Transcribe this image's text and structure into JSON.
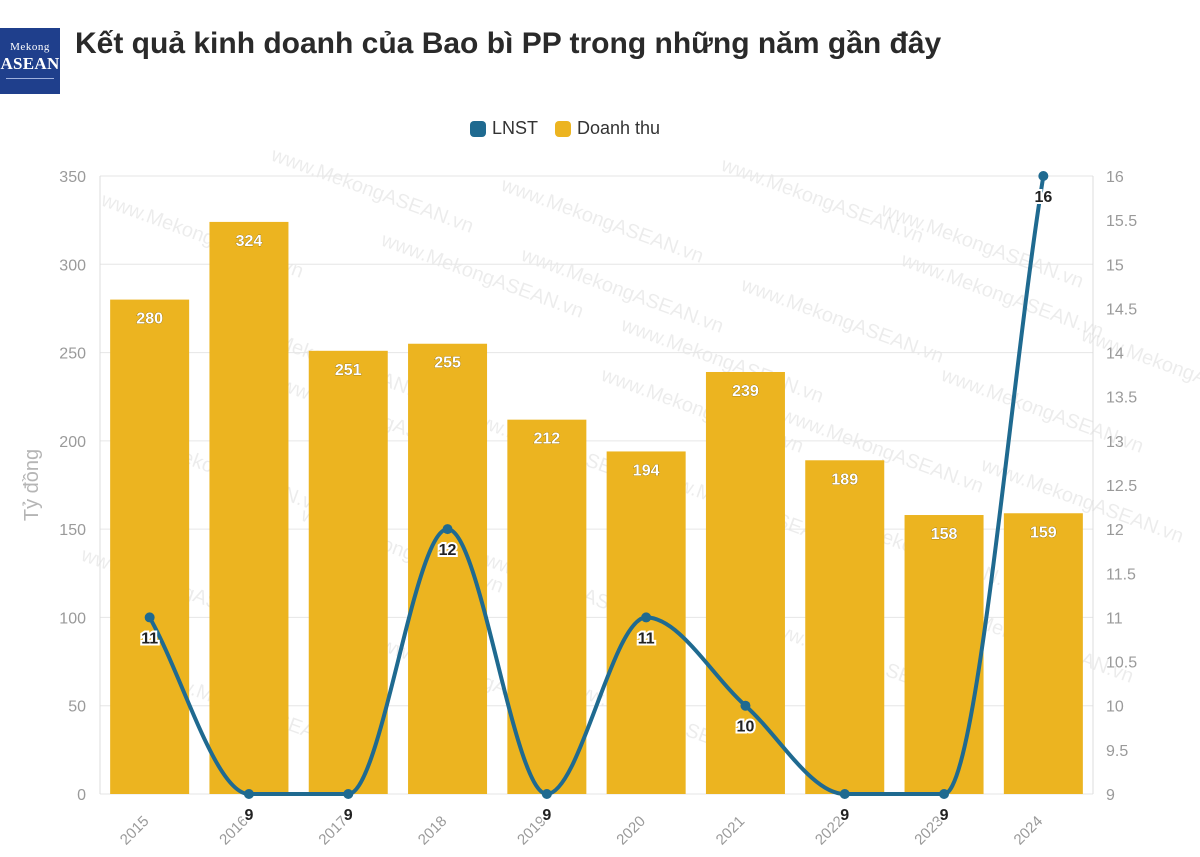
{
  "logo": {
    "line1": "Mekong",
    "line2": "ASEAN"
  },
  "title": "Kết quả kinh doanh của Bao bì PP trong những năm gần đây",
  "watermark": "www.MekongASEAN.vn",
  "colors": {
    "bar": "#ECB420",
    "line": "#1F6A90",
    "grid": "#E6E6E6",
    "axis_text": "#9a9a9a",
    "title": "#2a2a2a"
  },
  "chart_data": {
    "type": "bar",
    "categories": [
      "2015",
      "2016",
      "2017",
      "2018",
      "2019",
      "2020",
      "2021",
      "2022",
      "2023",
      "2024"
    ],
    "series": [
      {
        "name": "Doanh thu",
        "type": "bar",
        "axis": "left",
        "values": [
          280,
          324,
          251,
          255,
          212,
          194,
          239,
          189,
          158,
          159
        ]
      },
      {
        "name": "LNST",
        "type": "line",
        "axis": "right",
        "values": [
          11,
          9,
          9,
          12,
          9,
          11,
          10,
          9,
          9,
          16
        ]
      }
    ],
    "ylabel": "Tỷ đồng",
    "ylim": [
      0,
      350
    ],
    "yticks": [
      "0",
      "50",
      "100",
      "150",
      "200",
      "250",
      "300",
      "350"
    ],
    "y2lim": [
      9,
      16
    ],
    "y2ticks": [
      "9",
      "9.5",
      "10",
      "10.5",
      "11",
      "11.5",
      "12",
      "12.5",
      "13",
      "13.5",
      "14",
      "14.5",
      "15",
      "15.5",
      "16"
    ],
    "legend": "top-center",
    "grid": true
  }
}
